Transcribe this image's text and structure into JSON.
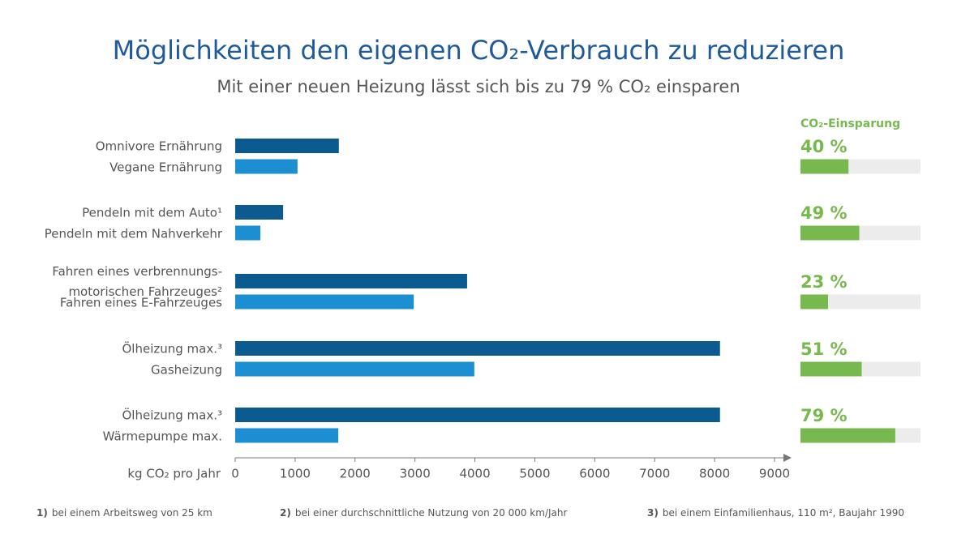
{
  "chart_data": {
    "type": "bar",
    "title": "Möglichkeiten den eigenen CO₂-Verbrauch zu reduzieren",
    "subtitle": "Mit einer neuen Heizung lässt sich bis zu 79 % CO₂ einsparen",
    "x_label": "kg CO₂ pro Jahr",
    "categories": [
      "Omnivore Ernährung",
      "Vegane Ernährung",
      "Pendeln mit dem Auto¹",
      "Pendeln mit dem Nahverkehr",
      "Fahren eines verbrennungs-\nmotorischen Fahrzeuges²",
      "Fahren eines E-Fahrzeuges",
      "Ölheizung max.³",
      "Gasheizung",
      "Ölheizung max.³",
      "Wärmepumpe max."
    ],
    "values": [
      1730,
      1040,
      800,
      420,
      3870,
      2980,
      8090,
      3990,
      8090,
      1720
    ],
    "colors": [
      "#0b5b91",
      "#1b8fd2"
    ],
    "xlim": [
      0,
      9000
    ],
    "xticks": [
      0,
      1000,
      2000,
      3000,
      4000,
      5000,
      6000,
      7000,
      8000,
      9000
    ],
    "savings": {
      "title": "CO₂-Einsparung",
      "values": [
        40,
        49,
        23,
        51,
        79
      ],
      "value_labels": [
        "40 %",
        "49 %",
        "23 %",
        "51 %",
        "79 %"
      ],
      "color": "#78b94f",
      "track_color": "#ececec",
      "xlim": [
        0,
        100
      ]
    },
    "footnotes": [
      {
        "marker": "1)",
        "text": "bei einem Arbeitsweg von 25 km"
      },
      {
        "marker": "2)",
        "text": "bei einer durchschnittliche Nutzung von 20 000 km/Jahr"
      },
      {
        "marker": "3)",
        "text": "bei einem Einfamilienhaus, 110 m², Baujahr 1990"
      }
    ]
  }
}
